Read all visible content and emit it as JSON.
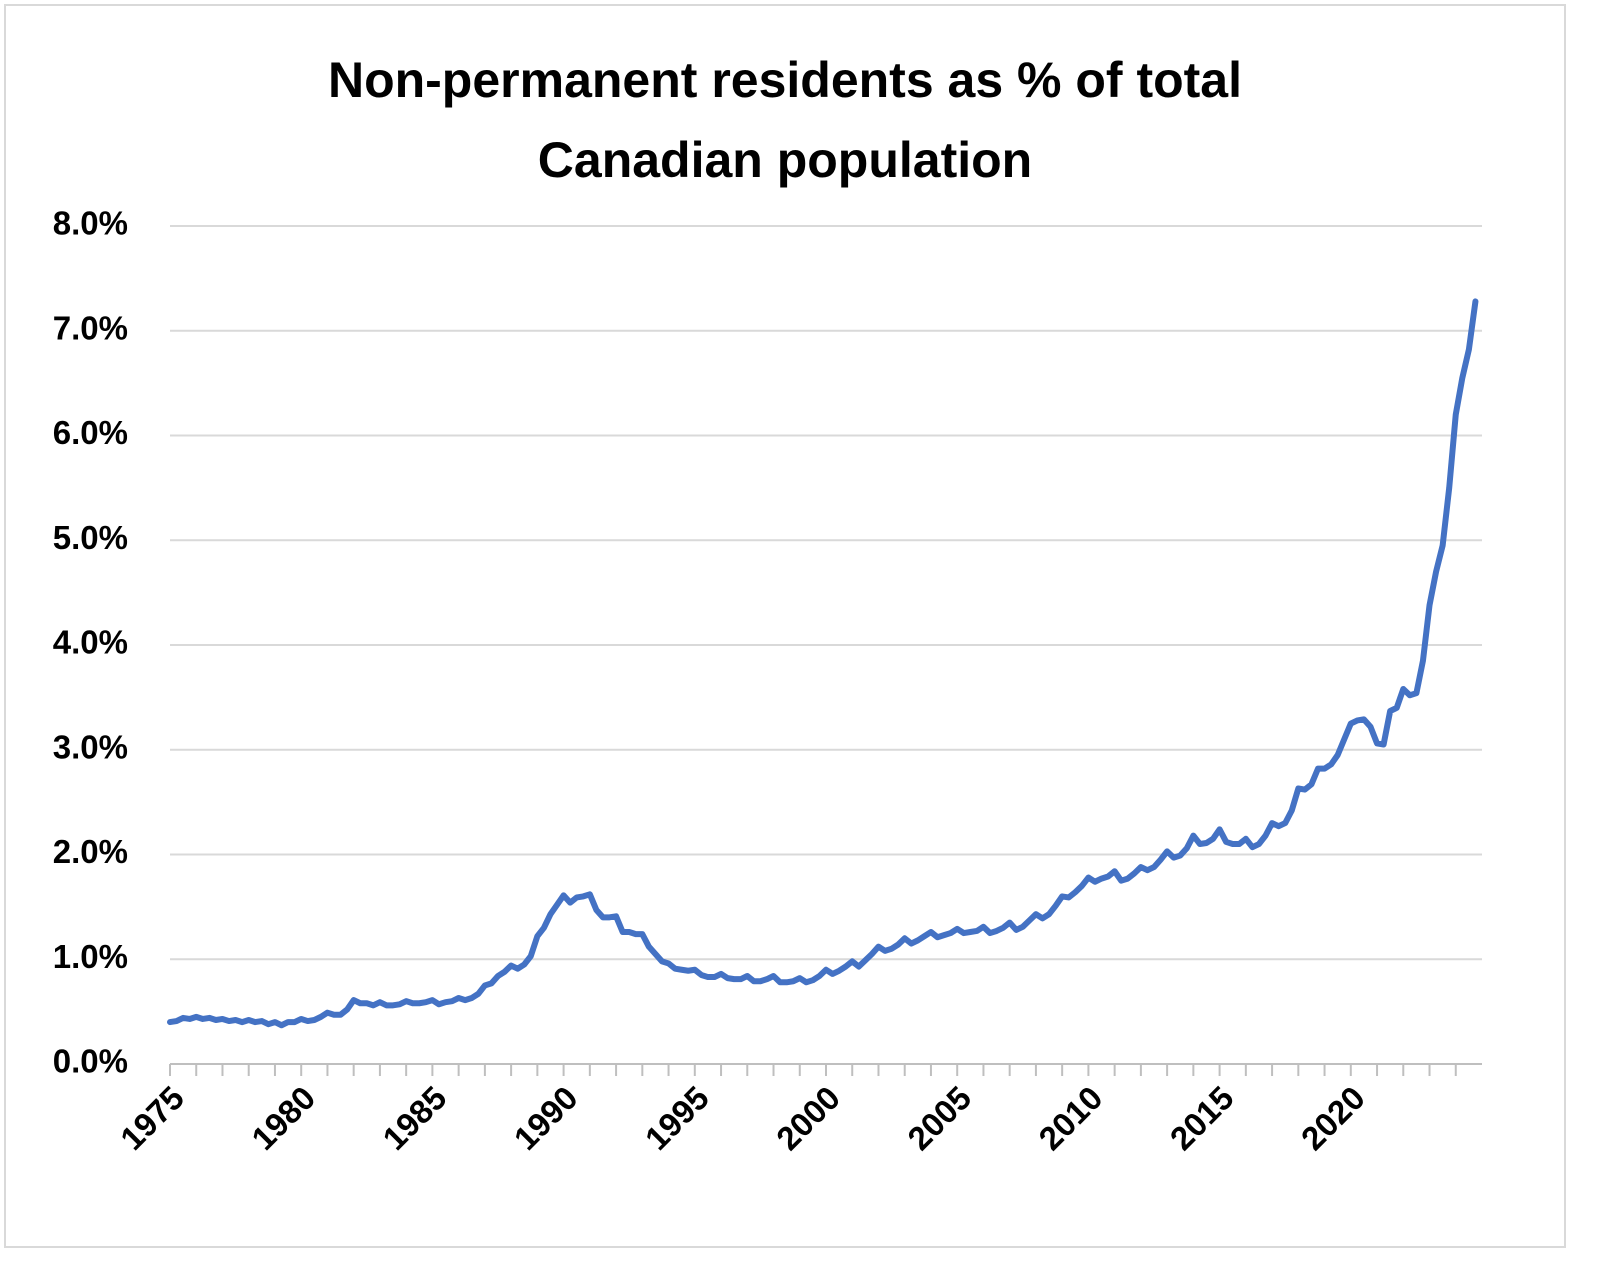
{
  "chart_data": {
    "type": "line",
    "title": "Non-permanent residents as % of total Canadian population",
    "categories": [
      "1975",
      null,
      null,
      null,
      null,
      null,
      null,
      null,
      null,
      null,
      null,
      null,
      null,
      null,
      null,
      null,
      null,
      null,
      null,
      null,
      "1980",
      null,
      null,
      null,
      null,
      null,
      null,
      null,
      null,
      null,
      null,
      null,
      null,
      null,
      null,
      null,
      null,
      null,
      null,
      null,
      "1985",
      null,
      null,
      null,
      null,
      null,
      null,
      null,
      null,
      null,
      null,
      null,
      null,
      null,
      null,
      null,
      null,
      null,
      null,
      null,
      "1990",
      null,
      null,
      null,
      null,
      null,
      null,
      null,
      null,
      null,
      null,
      null,
      null,
      null,
      null,
      null,
      null,
      null,
      null,
      null,
      "1995",
      null,
      null,
      null,
      null,
      null,
      null,
      null,
      null,
      null,
      null,
      null,
      null,
      null,
      null,
      null,
      null,
      null,
      null,
      null,
      "2000",
      null,
      null,
      null,
      null,
      null,
      null,
      null,
      null,
      null,
      null,
      null,
      null,
      null,
      null,
      null,
      null,
      null,
      null,
      null,
      "2005",
      null,
      null,
      null,
      null,
      null,
      null,
      null,
      null,
      null,
      null,
      null,
      null,
      null,
      null,
      null,
      null,
      null,
      null,
      null,
      "2010",
      null,
      null,
      null,
      null,
      null,
      null,
      null,
      null,
      null,
      null,
      null,
      null,
      null,
      null,
      null,
      null,
      null,
      null,
      null,
      "2015",
      null,
      null,
      null,
      null,
      null,
      null,
      null,
      null,
      null,
      null,
      null,
      null,
      null,
      null,
      null,
      null,
      null,
      null,
      null,
      "2020",
      null,
      null,
      null,
      null,
      null,
      null,
      null,
      null,
      null,
      null,
      null,
      null,
      null,
      null,
      null,
      null,
      null,
      null,
      null
    ],
    "values": [
      0.4,
      0.41,
      0.44,
      0.43,
      0.45,
      0.43,
      0.44,
      0.42,
      0.43,
      0.41,
      0.42,
      0.4,
      0.42,
      0.4,
      0.41,
      0.38,
      0.4,
      0.37,
      0.4,
      0.4,
      0.43,
      0.41,
      0.42,
      0.45,
      0.49,
      0.47,
      0.47,
      0.52,
      0.61,
      0.58,
      0.58,
      0.56,
      0.59,
      0.56,
      0.56,
      0.57,
      0.6,
      0.58,
      0.58,
      0.59,
      0.61,
      0.57,
      0.59,
      0.6,
      0.63,
      0.61,
      0.63,
      0.67,
      0.75,
      0.77,
      0.84,
      0.88,
      0.94,
      0.91,
      0.95,
      1.03,
      1.22,
      1.3,
      1.43,
      1.52,
      1.61,
      1.54,
      1.59,
      1.6,
      1.62,
      1.47,
      1.4,
      1.4,
      1.41,
      1.26,
      1.26,
      1.24,
      1.24,
      1.12,
      1.05,
      0.98,
      0.96,
      0.91,
      0.9,
      0.89,
      0.9,
      0.85,
      0.83,
      0.83,
      0.86,
      0.82,
      0.81,
      0.81,
      0.84,
      0.79,
      0.79,
      0.81,
      0.84,
      0.78,
      0.78,
      0.79,
      0.82,
      0.78,
      0.8,
      0.84,
      0.9,
      0.86,
      0.89,
      0.93,
      0.98,
      0.93,
      0.99,
      1.05,
      1.12,
      1.08,
      1.1,
      1.14,
      1.2,
      1.15,
      1.18,
      1.22,
      1.26,
      1.21,
      1.23,
      1.25,
      1.29,
      1.25,
      1.26,
      1.27,
      1.31,
      1.25,
      1.27,
      1.3,
      1.35,
      1.28,
      1.31,
      1.37,
      1.43,
      1.39,
      1.43,
      1.51,
      1.6,
      1.59,
      1.64,
      1.7,
      1.78,
      1.74,
      1.77,
      1.79,
      1.84,
      1.75,
      1.77,
      1.82,
      1.88,
      1.85,
      1.88,
      1.95,
      2.03,
      1.97,
      1.99,
      2.06,
      2.18,
      2.1,
      2.11,
      2.15,
      2.24,
      2.12,
      2.1,
      2.1,
      2.15,
      2.07,
      2.1,
      2.18,
      2.3,
      2.27,
      2.3,
      2.42,
      2.63,
      2.62,
      2.67,
      2.82,
      2.82,
      2.86,
      2.95,
      3.1,
      3.25,
      3.28,
      3.29,
      3.22,
      3.06,
      3.05,
      3.37,
      3.4,
      3.58,
      3.52,
      3.54,
      3.85,
      4.38,
      4.7,
      4.95,
      5.5,
      6.2,
      6.55,
      6.82,
      7.28
    ],
    "color": "#4472c4",
    "ylim": [
      0,
      8
    ],
    "yticks": [
      {
        "value": 0,
        "label": "0.0%"
      },
      {
        "value": 1,
        "label": "1.0%"
      },
      {
        "value": 2,
        "label": "2.0%"
      },
      {
        "value": 3,
        "label": "3.0%"
      },
      {
        "value": 4,
        "label": "4.0%"
      },
      {
        "value": 5,
        "label": "5.0%"
      },
      {
        "value": 6,
        "label": "6.0%"
      },
      {
        "value": 7,
        "label": "7.0%"
      },
      {
        "value": 8,
        "label": "8.0%"
      }
    ],
    "grid": true
  }
}
